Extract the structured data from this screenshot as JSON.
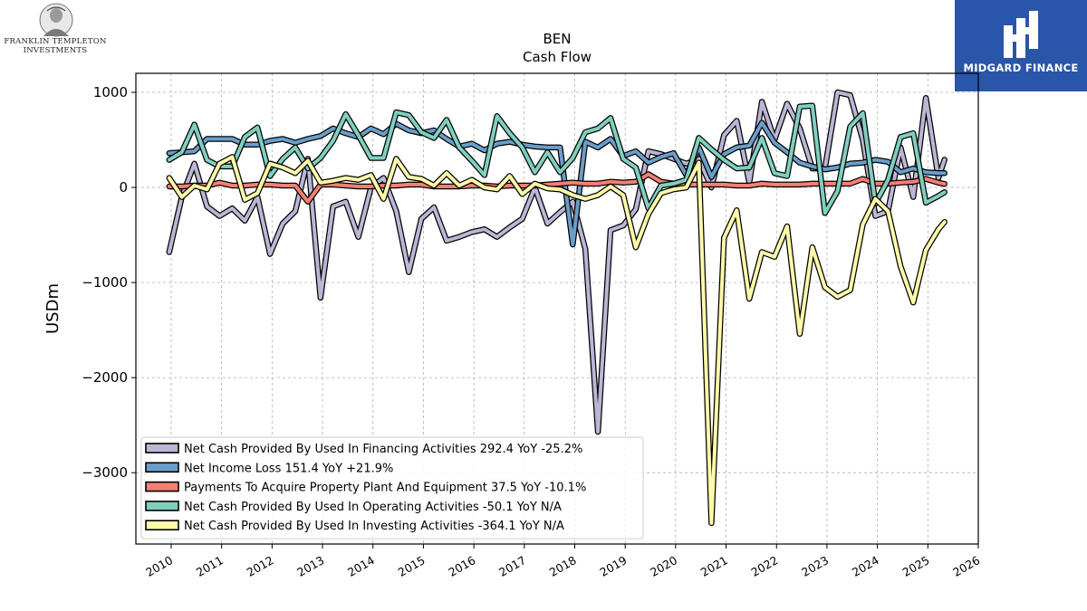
{
  "header": {
    "left_logo_text_line1": "FRANKLIN TEMPLETON",
    "left_logo_text_line2": "INVESTMENTS",
    "right_logo_text": "MIDGARD FINANCE"
  },
  "chart_data": {
    "type": "line",
    "title": "BEN",
    "subtitle": "Cash Flow",
    "xlabel": "",
    "ylabel": "USDm",
    "xlim": [
      2009.3,
      2026.0
    ],
    "ylim": [
      -3750,
      1200
    ],
    "x_ticks": [
      2010,
      2011,
      2012,
      2013,
      2014,
      2015,
      2016,
      2017,
      2018,
      2019,
      2020,
      2021,
      2022,
      2023,
      2024,
      2025,
      2026
    ],
    "y_ticks": [
      1000,
      0,
      -1000,
      -2000,
      -3000
    ],
    "y_tick_labels": [
      "1000",
      "0",
      "−1000",
      "−2000",
      "−3000"
    ],
    "grid": true,
    "legend_position": "lower-left",
    "x": [
      2009.96,
      2010.21,
      2010.46,
      2010.71,
      2010.96,
      2011.21,
      2011.46,
      2011.71,
      2011.96,
      2012.21,
      2012.46,
      2012.71,
      2012.96,
      2013.21,
      2013.46,
      2013.71,
      2013.96,
      2014.21,
      2014.46,
      2014.71,
      2014.96,
      2015.21,
      2015.46,
      2015.71,
      2015.96,
      2016.21,
      2016.46,
      2016.71,
      2016.96,
      2017.21,
      2017.46,
      2017.71,
      2017.96,
      2018.21,
      2018.46,
      2018.71,
      2018.96,
      2019.21,
      2019.46,
      2019.71,
      2019.96,
      2020.21,
      2020.46,
      2020.71,
      2020.96,
      2021.21,
      2021.46,
      2021.71,
      2021.96,
      2022.21,
      2022.46,
      2022.71,
      2022.96,
      2023.21,
      2023.46,
      2023.71,
      2023.96,
      2024.21,
      2024.46,
      2024.71,
      2024.96,
      2025.21,
      2025.33
    ],
    "series": [
      {
        "name": "Net Cash Provided By Used In Financing Activities",
        "legend_label": "Net Cash Provided By Used In Financing Activities  292.4 YoY -25.2%",
        "color": "#bcb5d6",
        "values": [
          -680,
          -100,
          250,
          -200,
          -300,
          -220,
          -350,
          -100,
          -700,
          -380,
          -250,
          300,
          -1160,
          -200,
          -150,
          -520,
          0,
          100,
          -250,
          -890,
          -330,
          -210,
          -560,
          -520,
          -470,
          -440,
          -520,
          -420,
          -330,
          0,
          -380,
          -260,
          -150,
          -650,
          -2570,
          -450,
          -400,
          -230,
          380,
          350,
          300,
          250,
          300,
          0,
          550,
          700,
          50,
          900,
          500,
          880,
          620,
          200,
          200,
          1000,
          970,
          500,
          -300,
          -250,
          420,
          -100,
          940,
          100,
          292
        ]
      },
      {
        "name": "Net Income Loss",
        "legend_label": "Net Income Loss  151.4 YoY +21.9%",
        "color": "#6a9ec9",
        "values": [
          360,
          370,
          380,
          510,
          510,
          510,
          450,
          450,
          490,
          510,
          470,
          510,
          540,
          620,
          570,
          530,
          620,
          560,
          670,
          600,
          570,
          600,
          510,
          430,
          460,
          390,
          460,
          480,
          450,
          430,
          420,
          420,
          -600,
          480,
          420,
          510,
          330,
          380,
          260,
          320,
          360,
          130,
          420,
          110,
          350,
          420,
          440,
          680,
          470,
          370,
          260,
          220,
          190,
          210,
          250,
          260,
          290,
          270,
          160,
          200,
          160,
          150,
          151
        ]
      },
      {
        "name": "Payments To Acquire Property Plant And Equipment",
        "legend_label": "Payments To Acquire Property Plant And Equipment  37.5 YoY -10.1%",
        "color": "#f47f72",
        "values": [
          10,
          10,
          20,
          20,
          50,
          20,
          20,
          30,
          30,
          20,
          20,
          -150,
          30,
          30,
          20,
          10,
          10,
          20,
          20,
          30,
          30,
          10,
          10,
          10,
          20,
          20,
          10,
          20,
          20,
          20,
          30,
          40,
          50,
          40,
          40,
          60,
          50,
          60,
          140,
          60,
          40,
          30,
          30,
          30,
          30,
          20,
          20,
          40,
          30,
          30,
          30,
          40,
          40,
          40,
          40,
          90,
          40,
          40,
          50,
          60,
          90,
          50,
          37
        ]
      },
      {
        "name": "Net Cash Provided By Used In Operating Activities",
        "legend_label": "Net Cash Provided By Used In Operating Activities  -50.1 YoY N/A",
        "color": "#7fcfbf",
        "values": [
          290,
          370,
          660,
          290,
          220,
          220,
          530,
          630,
          120,
          300,
          420,
          200,
          310,
          490,
          770,
          550,
          310,
          310,
          790,
          760,
          580,
          520,
          710,
          420,
          280,
          130,
          750,
          570,
          420,
          160,
          370,
          160,
          310,
          580,
          620,
          730,
          300,
          210,
          -220,
          20,
          40,
          80,
          520,
          400,
          290,
          200,
          210,
          520,
          150,
          120,
          850,
          860,
          -270,
          -40,
          640,
          780,
          -170,
          80,
          530,
          570,
          -160,
          -90,
          -50
        ]
      },
      {
        "name": "Net Cash Provided By Used In Investing Activities",
        "legend_label": "Net Cash Provided By Used In Investing Activities  -364.1 YoY N/A",
        "color": "#fff9aa",
        "values": [
          100,
          -100,
          20,
          -20,
          250,
          320,
          -130,
          -60,
          250,
          210,
          150,
          280,
          50,
          70,
          100,
          80,
          130,
          -120,
          300,
          110,
          90,
          20,
          150,
          20,
          80,
          0,
          -20,
          120,
          -70,
          40,
          -10,
          -20,
          -80,
          -120,
          -80,
          10,
          -80,
          -630,
          -280,
          -60,
          -20,
          0,
          260,
          -3530,
          -530,
          -240,
          -1170,
          -680,
          -730,
          -410,
          -1540,
          -630,
          -1050,
          -1150,
          -1080,
          -390,
          -120,
          -250,
          -830,
          -1210,
          -660,
          -440,
          -364
        ]
      }
    ]
  }
}
